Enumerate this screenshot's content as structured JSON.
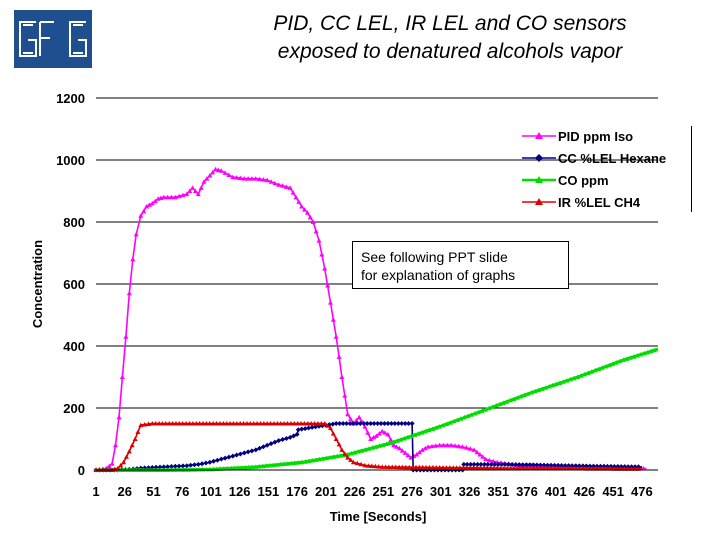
{
  "title_line1": "PID, CC LEL, IR LEL and CO sensors",
  "title_line2": "exposed to denatured alcohols vapor",
  "note": {
    "line1": "See following PPT slide",
    "line2": "for explanation of graphs"
  },
  "logo_text": "GfG",
  "chart_data": {
    "type": "line",
    "xlabel": "Time [Seconds]",
    "ylabel": "Concentration",
    "ylim": [
      0,
      1200
    ],
    "yticks": [
      "0",
      "200",
      "400",
      "600",
      "800",
      "1000",
      "1200"
    ],
    "xlim": [
      1,
      490
    ],
    "xticks": [
      "1",
      "26",
      "51",
      "76",
      "101",
      "126",
      "151",
      "176",
      "201",
      "226",
      "251",
      "276",
      "301",
      "326",
      "351",
      "376",
      "401",
      "426",
      "451",
      "476"
    ],
    "grid": "horizontal",
    "legend_position": "top-right",
    "series": [
      {
        "name": "PID ppm Iso",
        "color": "#ff00ff",
        "marker": "triangle",
        "x": [
          1,
          10,
          15,
          18,
          21,
          24,
          27,
          30,
          33,
          36,
          40,
          45,
          50,
          55,
          60,
          70,
          80,
          85,
          90,
          95,
          100,
          105,
          110,
          120,
          130,
          140,
          150,
          160,
          170,
          175,
          180,
          185,
          190,
          195,
          200,
          205,
          210,
          215,
          220,
          225,
          230,
          235,
          240,
          245,
          250,
          255,
          260,
          265,
          270,
          275,
          280,
          285,
          290,
          300,
          310,
          320,
          330,
          335,
          340,
          350,
          360,
          370,
          380,
          400,
          420,
          440,
          460,
          480
        ],
        "y": [
          0,
          5,
          20,
          80,
          170,
          300,
          430,
          570,
          680,
          760,
          820,
          850,
          860,
          875,
          880,
          880,
          890,
          910,
          890,
          930,
          950,
          970,
          965,
          945,
          940,
          940,
          935,
          920,
          910,
          880,
          850,
          830,
          800,
          740,
          650,
          540,
          430,
          300,
          180,
          150,
          170,
          140,
          100,
          110,
          125,
          115,
          80,
          70,
          55,
          40,
          50,
          65,
          75,
          80,
          80,
          75,
          65,
          50,
          35,
          25,
          20,
          15,
          15,
          10,
          10,
          5,
          5,
          5
        ]
      },
      {
        "name": "CC %LEL Hexane",
        "color": "#000080",
        "marker": "diamond",
        "x": [
          1,
          20,
          30,
          40,
          50,
          60,
          70,
          80,
          90,
          100,
          110,
          120,
          130,
          140,
          150,
          160,
          170,
          176,
          177,
          210,
          276,
          277,
          320,
          321,
          360,
          400,
          440,
          476
        ],
        "y": [
          0,
          0,
          2,
          6,
          8,
          10,
          12,
          14,
          18,
          25,
          35,
          45,
          55,
          65,
          80,
          95,
          105,
          115,
          130,
          150,
          150,
          0,
          0,
          18,
          18,
          15,
          12,
          10
        ]
      },
      {
        "name": "CO ppm",
        "color": "#00dd00",
        "marker": "triangle",
        "x": [
          1,
          60,
          100,
          140,
          180,
          220,
          260,
          300,
          340,
          380,
          420,
          460,
          490
        ],
        "y": [
          0,
          0,
          2,
          10,
          25,
          50,
          90,
          140,
          195,
          250,
          300,
          355,
          390
        ]
      },
      {
        "name": "IR %LEL CH4",
        "color": "#dd0000",
        "marker": "triangle",
        "x": [
          1,
          15,
          20,
          25,
          30,
          35,
          40,
          50,
          100,
          150,
          200,
          205,
          210,
          215,
          220,
          225,
          235,
          250,
          300,
          350,
          400,
          476
        ],
        "y": [
          0,
          0,
          5,
          25,
          60,
          100,
          145,
          150,
          150,
          150,
          150,
          135,
          100,
          65,
          40,
          25,
          15,
          10,
          8,
          6,
          5,
          4
        ]
      }
    ]
  }
}
